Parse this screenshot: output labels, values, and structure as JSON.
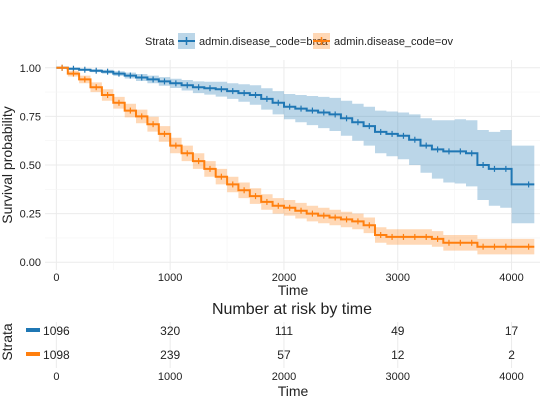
{
  "legend": {
    "title": "Strata",
    "items": [
      {
        "label": "admin.disease_code=brca",
        "color": "#1f77b4"
      },
      {
        "label": "admin.disease_code=ov",
        "color": "#ff7f0e"
      }
    ]
  },
  "chart_data": {
    "type": "line",
    "xlabel": "Time",
    "ylabel": "Survival probability",
    "xlim": [
      -100,
      4250
    ],
    "ylim": [
      -0.04,
      1.04
    ],
    "x_ticks": [
      0,
      1000,
      2000,
      3000,
      4000
    ],
    "y_ticks": [
      0.0,
      0.25,
      0.5,
      0.75,
      1.0
    ],
    "y_tick_labels": [
      "0.00",
      "0.25",
      "0.50",
      "0.75",
      "1.00"
    ],
    "grid": true,
    "legend_position": "top",
    "series": [
      {
        "name": "admin.disease_code=brca",
        "color": "#1f77b4",
        "x": [
          0,
          100,
          200,
          300,
          400,
          500,
          600,
          700,
          800,
          900,
          1000,
          1100,
          1200,
          1300,
          1400,
          1500,
          1600,
          1700,
          1800,
          1900,
          2000,
          2100,
          2200,
          2300,
          2400,
          2500,
          2600,
          2700,
          2800,
          2900,
          3000,
          3100,
          3200,
          3300,
          3400,
          3500,
          3600,
          3700,
          3800,
          3900,
          4000,
          4200
        ],
        "values": [
          1.0,
          0.995,
          0.99,
          0.985,
          0.98,
          0.97,
          0.96,
          0.95,
          0.94,
          0.93,
          0.92,
          0.91,
          0.9,
          0.895,
          0.89,
          0.88,
          0.87,
          0.86,
          0.84,
          0.82,
          0.8,
          0.79,
          0.78,
          0.77,
          0.76,
          0.74,
          0.72,
          0.7,
          0.67,
          0.66,
          0.65,
          0.63,
          0.6,
          0.58,
          0.57,
          0.57,
          0.56,
          0.5,
          0.48,
          0.48,
          0.4,
          0.4
        ],
        "ci_lower": [
          1.0,
          0.99,
          0.985,
          0.978,
          0.97,
          0.958,
          0.945,
          0.932,
          0.92,
          0.908,
          0.896,
          0.883,
          0.87,
          0.862,
          0.852,
          0.84,
          0.825,
          0.81,
          0.785,
          0.76,
          0.735,
          0.72,
          0.705,
          0.69,
          0.675,
          0.65,
          0.625,
          0.6,
          0.56,
          0.545,
          0.53,
          0.5,
          0.46,
          0.43,
          0.41,
          0.405,
          0.39,
          0.32,
          0.29,
          0.28,
          0.2,
          0.2
        ],
        "ci_upper": [
          1.0,
          1.0,
          0.995,
          0.992,
          0.99,
          0.982,
          0.975,
          0.968,
          0.96,
          0.952,
          0.944,
          0.937,
          0.93,
          0.928,
          0.928,
          0.92,
          0.915,
          0.91,
          0.895,
          0.88,
          0.865,
          0.86,
          0.855,
          0.85,
          0.845,
          0.83,
          0.815,
          0.8,
          0.78,
          0.775,
          0.77,
          0.76,
          0.74,
          0.73,
          0.73,
          0.735,
          0.73,
          0.68,
          0.67,
          0.68,
          0.6,
          0.6
        ]
      },
      {
        "name": "admin.disease_code=ov",
        "color": "#ff7f0e",
        "x": [
          0,
          100,
          200,
          300,
          400,
          500,
          600,
          700,
          800,
          900,
          1000,
          1100,
          1200,
          1300,
          1400,
          1500,
          1600,
          1700,
          1800,
          1900,
          2000,
          2100,
          2200,
          2300,
          2400,
          2500,
          2600,
          2700,
          2800,
          2900,
          3000,
          3100,
          3200,
          3300,
          3400,
          3500,
          3600,
          3700,
          3800,
          3900,
          4000,
          4200
        ],
        "values": [
          1.0,
          0.97,
          0.94,
          0.9,
          0.86,
          0.82,
          0.78,
          0.75,
          0.71,
          0.66,
          0.6,
          0.56,
          0.52,
          0.48,
          0.44,
          0.4,
          0.37,
          0.34,
          0.31,
          0.29,
          0.28,
          0.265,
          0.25,
          0.24,
          0.23,
          0.22,
          0.21,
          0.19,
          0.14,
          0.13,
          0.13,
          0.13,
          0.13,
          0.12,
          0.1,
          0.1,
          0.1,
          0.08,
          0.08,
          0.08,
          0.08,
          0.08
        ],
        "ci_lower": [
          1.0,
          0.955,
          0.92,
          0.875,
          0.83,
          0.79,
          0.745,
          0.715,
          0.672,
          0.62,
          0.56,
          0.52,
          0.48,
          0.44,
          0.4,
          0.36,
          0.33,
          0.3,
          0.27,
          0.25,
          0.24,
          0.225,
          0.21,
          0.2,
          0.19,
          0.18,
          0.17,
          0.15,
          0.1,
          0.09,
          0.09,
          0.09,
          0.09,
          0.08,
          0.06,
          0.06,
          0.06,
          0.04,
          0.04,
          0.04,
          0.04,
          0.04
        ],
        "ci_upper": [
          1.0,
          0.985,
          0.96,
          0.925,
          0.89,
          0.85,
          0.815,
          0.785,
          0.748,
          0.7,
          0.64,
          0.6,
          0.56,
          0.52,
          0.48,
          0.44,
          0.41,
          0.38,
          0.35,
          0.33,
          0.32,
          0.305,
          0.29,
          0.28,
          0.27,
          0.26,
          0.25,
          0.23,
          0.18,
          0.17,
          0.17,
          0.17,
          0.17,
          0.16,
          0.14,
          0.14,
          0.14,
          0.12,
          0.12,
          0.12,
          0.12,
          0.12
        ]
      }
    ]
  },
  "risk_table": {
    "title": "Number at risk by time",
    "ylabel": "Strata",
    "xlabel": "Time",
    "times": [
      0,
      1000,
      2000,
      3000,
      4000
    ],
    "rows": [
      {
        "color": "#1f77b4",
        "counts": [
          "1096",
          "320",
          "111",
          "49",
          "17"
        ]
      },
      {
        "color": "#ff7f0e",
        "counts": [
          "1098",
          "239",
          "57",
          "12",
          "2"
        ]
      }
    ]
  }
}
